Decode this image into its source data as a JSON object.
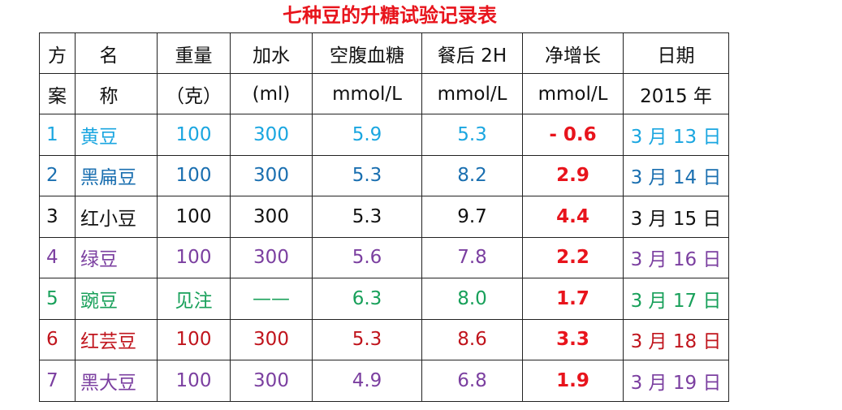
{
  "title": "七种豆的升糖试验记录表",
  "headers": {
    "col1": [
      "方",
      "案"
    ],
    "col2": [
      "名",
      "称"
    ],
    "col3": [
      "重量",
      "（克）"
    ],
    "col4": [
      "加水",
      "(ml)"
    ],
    "col5": [
      "空腹血糖",
      "mmol/L"
    ],
    "col6": [
      "餐后 2H",
      "mmol/L"
    ],
    "col7": [
      "净增长",
      "mmol/L"
    ],
    "col8": [
      "日期",
      "2015 年"
    ]
  },
  "rows": [
    {
      "plan": "1",
      "name": "黄豆",
      "weight": "100",
      "water": "300",
      "fasting": "5.9",
      "after": "5.3",
      "increase": "- 0.6",
      "date": "3 月 13 日",
      "color": "#1aa6e0",
      "increase_color": "#e8141c"
    },
    {
      "plan": "2",
      "name": "黑扁豆",
      "weight": "100",
      "water": "300",
      "fasting": "5.3",
      "after": "8.2",
      "increase": "2.9",
      "date": "3 月 14 日",
      "color": "#1a6fb0",
      "increase_color": "#e8141c"
    },
    {
      "plan": "3",
      "name": "红小豆",
      "weight": "100",
      "water": "300",
      "fasting": "5.3",
      "after": "9.7",
      "increase": "4.4",
      "date": "3 月 15 日",
      "color": "#111111",
      "increase_color": "#e8141c"
    },
    {
      "plan": "4",
      "name": "绿豆",
      "weight": "100",
      "water": "300",
      "fasting": "5.6",
      "after": "7.8",
      "increase": "2.2",
      "date": "3 月 16 日",
      "color": "#7b3fa0",
      "increase_color": "#e8141c"
    },
    {
      "plan": "5",
      "name": "豌豆",
      "weight": "见注",
      "water": "——",
      "fasting": "6.3",
      "after": "8.0",
      "increase": "1.7",
      "date": "3 月 17 日",
      "color": "#18a05a",
      "increase_color": "#e8141c"
    },
    {
      "plan": "6",
      "name": "红芸豆",
      "weight": "100",
      "water": "300",
      "fasting": "5.3",
      "after": "8.6",
      "increase": "3.3",
      "date": "3 月 18 日",
      "color": "#c0141c",
      "increase_color": "#e8141c"
    },
    {
      "plan": "7",
      "name": "黑大豆",
      "weight": "100",
      "water": "300",
      "fasting": "4.9",
      "after": "6.8",
      "increase": "1.9",
      "date": "3 月 19 日",
      "color": "#7b3fa0",
      "increase_color": "#e8141c"
    }
  ]
}
